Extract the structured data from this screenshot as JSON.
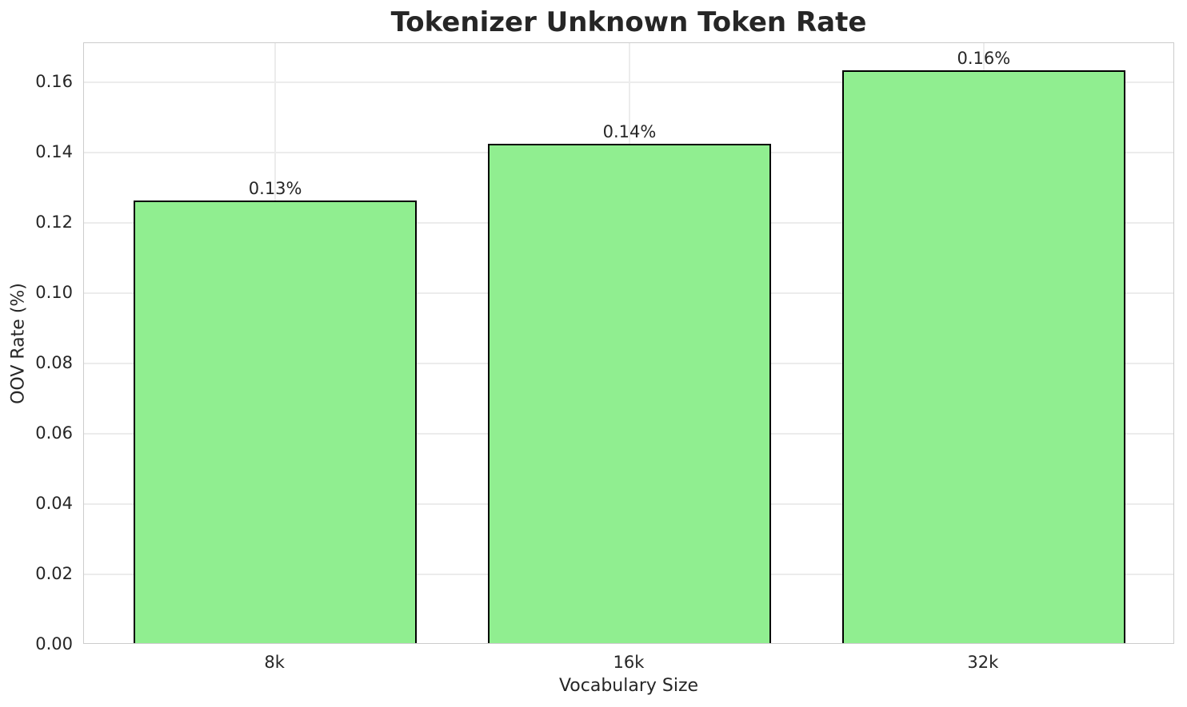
{
  "chart_data": {
    "type": "bar",
    "title": "Tokenizer Unknown Token Rate",
    "xlabel": "Vocabulary Size",
    "ylabel": "OOV Rate (%)",
    "categories": [
      "8k",
      "16k",
      "32k"
    ],
    "values": [
      0.126,
      0.142,
      0.163
    ],
    "bar_labels": [
      "0.13%",
      "0.14%",
      "0.16%"
    ],
    "yticks": [
      "0.00",
      "0.02",
      "0.04",
      "0.06",
      "0.08",
      "0.10",
      "0.12",
      "0.14",
      "0.16"
    ],
    "ylim": [
      0,
      0.1712
    ],
    "xlim": [
      -0.54,
      2.54
    ],
    "bar_width_units": 0.8,
    "grid": "both",
    "legend_position": "none",
    "colors": {
      "bar_fill": "#90EE90",
      "bar_edge": "#000000",
      "grid": "#ececec",
      "spine": "#cccccc",
      "text": "#262626",
      "background": "#ffffff"
    }
  }
}
